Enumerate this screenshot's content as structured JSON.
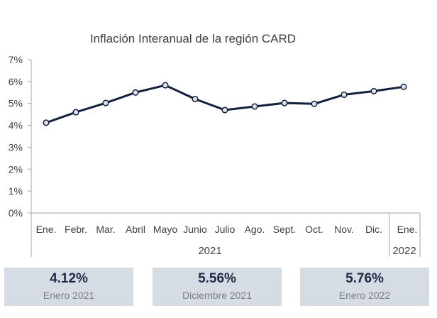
{
  "chart_data": {
    "type": "line",
    "title": "Inflación Interanual de la región CARD",
    "categories": [
      "Ene.",
      "Febr.",
      "Mar.",
      "Abril",
      "Mayo",
      "Junio",
      "Julio",
      "Ago.",
      "Sept.",
      "Oct.",
      "Nov.",
      "Dic.",
      "Ene."
    ],
    "year_groups": [
      {
        "label": "2021",
        "start": 0,
        "end": 11
      },
      {
        "label": "2022",
        "start": 12,
        "end": 12
      }
    ],
    "series": [
      {
        "values": [
          4.12,
          4.6,
          5.02,
          5.5,
          5.83,
          5.2,
          4.7,
          4.86,
          5.02,
          4.98,
          5.4,
          5.56,
          5.76
        ]
      }
    ],
    "yticks": [
      "0%",
      "1%",
      "2%",
      "3%",
      "4%",
      "5%",
      "6%",
      "7%"
    ],
    "ylim": [
      0,
      7
    ],
    "grid": false,
    "colors": {
      "line": "#13213d",
      "marker_fill": "#dde3ec",
      "axis": "#a6a6a6"
    }
  },
  "cards": [
    {
      "value": "4.12%",
      "label": "Enero 2021"
    },
    {
      "value": "5.56%",
      "label": "Diciembre 2021"
    },
    {
      "value": "5.76%",
      "label": "Enero 2022"
    }
  ]
}
